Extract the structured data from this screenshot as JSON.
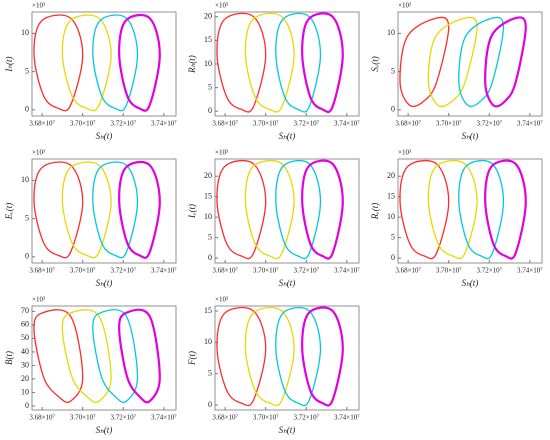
{
  "chart_data": [
    {
      "type": "line",
      "y_label": "Iₕ(t)",
      "x_label": "Sₕ(t)",
      "y_multiplier": "×10³",
      "xlim": [
        36750000,
        37460000
      ],
      "ylim": [
        -0.8,
        12.8
      ],
      "xticks": [
        {
          "value": 36800000,
          "label": "3.68×10⁷"
        },
        {
          "value": 37000000,
          "label": "3.70×10⁷"
        },
        {
          "value": 37200000,
          "label": "3.72×10⁷"
        },
        {
          "value": 37400000,
          "label": "3.74×10⁷"
        }
      ],
      "yticks": [
        0,
        5,
        10
      ],
      "series": [
        {
          "color": "#ff2a2a",
          "x": [
            36808000,
            36760000,
            36796000,
            36940000,
            37000000,
            36940000,
            36880000
          ],
          "values": [
            1.8,
            7.2,
            11.6,
            12,
            7.2,
            0.6,
            0.2
          ]
        },
        {
          "color": "#e8d800",
          "x": [
            36948000,
            36900000,
            36936000,
            37080000,
            37140000,
            37080000,
            37020000
          ],
          "values": [
            1.8,
            7.2,
            11.6,
            12,
            7.2,
            0.6,
            0.2
          ]
        },
        {
          "color": "#00c8e0",
          "x": [
            37094000,
            37050000,
            37083000,
            37215000,
            37270000,
            37215000,
            37160000
          ],
          "values": [
            1.8,
            7.2,
            11.6,
            12,
            7.2,
            0.6,
            0.2
          ]
        },
        {
          "color": "#e000e0",
          "x": [
            37220000,
            37180000,
            37210000,
            37330000,
            37380000,
            37330000,
            37280000
          ],
          "values": [
            1.8,
            7.2,
            11.6,
            12,
            7.2,
            0.6,
            0.2
          ]
        }
      ]
    },
    {
      "type": "line",
      "y_label": "Rₕ(t)",
      "x_label": "Sₕ(t)",
      "y_multiplier": "×10³",
      "xlim": [
        36750000,
        37460000
      ],
      "ylim": [
        -1,
        21
      ],
      "xticks": [
        {
          "value": 36800000,
          "label": "3.68×10⁷"
        },
        {
          "value": 37000000,
          "label": "3.70×10⁷"
        },
        {
          "value": 37200000,
          "label": "3.72×10⁷"
        },
        {
          "value": 37400000,
          "label": "3.74×10⁷"
        }
      ],
      "yticks": [
        0,
        5,
        10,
        15,
        20
      ],
      "series": [
        {
          "color": "#ff2a2a",
          "x": [
            36808000,
            36760000,
            36796000,
            36940000,
            37000000,
            36940000,
            36880000
          ],
          "values": [
            3,
            12,
            19.4,
            20,
            12,
            1,
            0.4
          ]
        },
        {
          "color": "#e8d800",
          "x": [
            36948000,
            36900000,
            36936000,
            37080000,
            37140000,
            37080000,
            37020000
          ],
          "values": [
            3,
            12,
            19.4,
            20,
            12,
            1,
            0.4
          ]
        },
        {
          "color": "#00c8e0",
          "x": [
            37094000,
            37050000,
            37083000,
            37215000,
            37270000,
            37215000,
            37160000
          ],
          "values": [
            3,
            12,
            19.4,
            20,
            12,
            1,
            0.4
          ]
        },
        {
          "color": "#e000e0",
          "x": [
            37220000,
            37180000,
            37210000,
            37330000,
            37380000,
            37330000,
            37280000
          ],
          "values": [
            3,
            12,
            19.4,
            20,
            12,
            1,
            0.4
          ]
        }
      ]
    },
    {
      "type": "line",
      "y_label": "Sᵥ(t)",
      "x_label": "Sₕ(t)",
      "y_multiplier": "×10³",
      "xlim": [
        36750000,
        37460000
      ],
      "ylim": [
        -0.8,
        12.8
      ],
      "xticks": [
        {
          "value": 36800000,
          "label": "3.68×10⁷"
        },
        {
          "value": 37000000,
          "label": "3.70×10⁷"
        },
        {
          "value": 37200000,
          "label": "3.72×10⁷"
        },
        {
          "value": 37400000,
          "label": "3.74×10⁷"
        }
      ],
      "yticks": [
        0,
        5,
        10
      ],
      "series": [
        {
          "color": "#ff2a2a",
          "x": [
            36808000,
            36760000,
            36796000,
            36940000,
            37000000,
            36940000,
            36880000
          ],
          "values": [
            0.6,
            3.6,
            9.6,
            12,
            10.8,
            3.6,
            1.2
          ]
        },
        {
          "color": "#e8d800",
          "x": [
            36948000,
            36900000,
            36936000,
            37080000,
            37140000,
            37080000,
            37020000
          ],
          "values": [
            0.6,
            3.6,
            9.6,
            12,
            10.8,
            3.6,
            1.2
          ]
        },
        {
          "color": "#00c8e0",
          "x": [
            37094000,
            37050000,
            37083000,
            37215000,
            37270000,
            37215000,
            37160000
          ],
          "values": [
            0.6,
            3.6,
            9.6,
            12,
            10.8,
            3.6,
            1.2
          ]
        },
        {
          "color": "#e000e0",
          "x": [
            37220000,
            37180000,
            37210000,
            37330000,
            37380000,
            37330000,
            37280000
          ],
          "values": [
            0.6,
            3.6,
            9.6,
            12,
            10.8,
            3.6,
            1.2
          ]
        }
      ]
    },
    {
      "type": "line",
      "y_label": "Eᵥ(t)",
      "x_label": "Sₕ(t)",
      "y_multiplier": "×10³",
      "xlim": [
        36750000,
        37460000
      ],
      "ylim": [
        -0.8,
        12.8
      ],
      "xticks": [
        {
          "value": 36800000,
          "label": "3.68×10⁷"
        },
        {
          "value": 37000000,
          "label": "3.70×10⁷"
        },
        {
          "value": 37200000,
          "label": "3.72×10⁷"
        },
        {
          "value": 37400000,
          "label": "3.74×10⁷"
        }
      ],
      "yticks": [
        0,
        5,
        10
      ],
      "series": [
        {
          "color": "#ff2a2a",
          "x": [
            36808000,
            36760000,
            36796000,
            36940000,
            37000000,
            36940000,
            36880000
          ],
          "values": [
            1.8,
            7.2,
            11.6,
            12,
            7.2,
            0.6,
            0.2
          ]
        },
        {
          "color": "#e8d800",
          "x": [
            36948000,
            36900000,
            36936000,
            37080000,
            37140000,
            37080000,
            37020000
          ],
          "values": [
            1.8,
            7.2,
            11.6,
            12,
            7.2,
            0.6,
            0.2
          ]
        },
        {
          "color": "#00c8e0",
          "x": [
            37094000,
            37050000,
            37083000,
            37215000,
            37270000,
            37215000,
            37160000
          ],
          "values": [
            1.8,
            7.2,
            11.6,
            12,
            7.2,
            0.6,
            0.2
          ]
        },
        {
          "color": "#e000e0",
          "x": [
            37220000,
            37180000,
            37210000,
            37330000,
            37380000,
            37330000,
            37280000
          ],
          "values": [
            1.8,
            7.2,
            11.6,
            12,
            7.2,
            0.6,
            0.2
          ]
        }
      ]
    },
    {
      "type": "line",
      "y_label": "Iᵥ(t)",
      "x_label": "Sₕ(t)",
      "y_multiplier": "×10³",
      "xlim": [
        36750000,
        37460000
      ],
      "ylim": [
        -1.2,
        24.2
      ],
      "xticks": [
        {
          "value": 36800000,
          "label": "3.68×10⁷"
        },
        {
          "value": 37000000,
          "label": "3.70×10⁷"
        },
        {
          "value": 37200000,
          "label": "3.72×10⁷"
        },
        {
          "value": 37400000,
          "label": "3.74×10⁷"
        }
      ],
      "yticks": [
        0,
        5,
        10,
        15,
        20
      ],
      "series": [
        {
          "color": "#ff2a2a",
          "x": [
            36808000,
            36760000,
            36796000,
            36940000,
            37000000,
            36940000,
            36880000
          ],
          "values": [
            3.5,
            13.8,
            22.3,
            23,
            13.8,
            1.2,
            0.5
          ]
        },
        {
          "color": "#e8d800",
          "x": [
            36948000,
            36900000,
            36936000,
            37080000,
            37140000,
            37080000,
            37020000
          ],
          "values": [
            3.5,
            13.8,
            22.3,
            23,
            13.8,
            1.2,
            0.5
          ]
        },
        {
          "color": "#00c8e0",
          "x": [
            37094000,
            37050000,
            37083000,
            37215000,
            37270000,
            37215000,
            37160000
          ],
          "values": [
            3.5,
            13.8,
            22.3,
            23,
            13.8,
            1.2,
            0.5
          ]
        },
        {
          "color": "#e000e0",
          "x": [
            37220000,
            37180000,
            37210000,
            37330000,
            37380000,
            37330000,
            37280000
          ],
          "values": [
            3.5,
            13.8,
            22.3,
            23,
            13.8,
            1.2,
            0.5
          ]
        }
      ]
    },
    {
      "type": "line",
      "y_label": "Rᵥ(t)",
      "x_label": "Sₕ(t)",
      "y_multiplier": "×10³",
      "xlim": [
        36750000,
        37460000
      ],
      "ylim": [
        -1.2,
        24.2
      ],
      "xticks": [
        {
          "value": 36800000,
          "label": "3.68×10⁷"
        },
        {
          "value": 37000000,
          "label": "3.70×10⁷"
        },
        {
          "value": 37200000,
          "label": "3.72×10⁷"
        },
        {
          "value": 37400000,
          "label": "3.74×10⁷"
        }
      ],
      "yticks": [
        0,
        5,
        10,
        15,
        20
      ],
      "series": [
        {
          "color": "#ff2a2a",
          "x": [
            36808000,
            36760000,
            36796000,
            36940000,
            37000000,
            36940000,
            36880000
          ],
          "values": [
            3.5,
            13.8,
            22.3,
            23,
            13.8,
            1.2,
            0.5
          ]
        },
        {
          "color": "#e8d800",
          "x": [
            36948000,
            36900000,
            36936000,
            37080000,
            37140000,
            37080000,
            37020000
          ],
          "values": [
            3.5,
            13.8,
            22.3,
            23,
            13.8,
            1.2,
            0.5
          ]
        },
        {
          "color": "#00c8e0",
          "x": [
            37094000,
            37050000,
            37083000,
            37215000,
            37270000,
            37215000,
            37160000
          ],
          "values": [
            3.5,
            13.8,
            22.3,
            23,
            13.8,
            1.2,
            0.5
          ]
        },
        {
          "color": "#e000e0",
          "x": [
            37220000,
            37180000,
            37210000,
            37330000,
            37380000,
            37330000,
            37280000
          ],
          "values": [
            3.5,
            13.8,
            22.3,
            23,
            13.8,
            1.2,
            0.5
          ]
        }
      ]
    },
    {
      "type": "line",
      "y_label": "B(t)",
      "x_label": "Sₕ(t)",
      "y_multiplier": "×10³",
      "xlim": [
        36750000,
        37460000
      ],
      "ylim": [
        -3,
        74
      ],
      "xticks": [
        {
          "value": 36800000,
          "label": "3.68×10⁷"
        },
        {
          "value": 37000000,
          "label": "3.70×10⁷"
        },
        {
          "value": 37200000,
          "label": "3.72×10⁷"
        },
        {
          "value": 37400000,
          "label": "3.74×10⁷"
        }
      ],
      "yticks": [
        0,
        10,
        20,
        30,
        40,
        50,
        60,
        70
      ],
      "series": [
        {
          "color": "#ff2a2a",
          "x": [
            36808000,
            36760000,
            36796000,
            36940000,
            37000000,
            36940000,
            36880000
          ],
          "values": [
            21,
            56,
            68.6,
            66.5,
            21,
            3.5,
            7
          ]
        },
        {
          "color": "#e8d800",
          "x": [
            36948000,
            36900000,
            36936000,
            37080000,
            37140000,
            37080000,
            37020000
          ],
          "values": [
            21,
            56,
            68.6,
            66.5,
            21,
            3.5,
            7
          ]
        },
        {
          "color": "#00c8e0",
          "x": [
            37094000,
            37050000,
            37083000,
            37215000,
            37270000,
            37215000,
            37160000
          ],
          "values": [
            21,
            56,
            68.6,
            66.5,
            21,
            3.5,
            7
          ]
        },
        {
          "color": "#e000e0",
          "x": [
            37220000,
            37180000,
            37210000,
            37330000,
            37380000,
            37330000,
            37280000
          ],
          "values": [
            21,
            56,
            68.6,
            66.5,
            21,
            3.5,
            7
          ]
        }
      ]
    },
    {
      "type": "line",
      "y_label": "F(t)",
      "x_label": "Sₕ(t)",
      "y_multiplier": "×10³",
      "xlim": [
        36750000,
        37460000
      ],
      "ylim": [
        -0.8,
        15.8
      ],
      "xticks": [
        {
          "value": 36800000,
          "label": "3.68×10⁷"
        },
        {
          "value": 37000000,
          "label": "3.70×10⁷"
        },
        {
          "value": 37200000,
          "label": "3.72×10⁷"
        },
        {
          "value": 37400000,
          "label": "3.74×10⁷"
        }
      ],
      "yticks": [
        0,
        5,
        10,
        15
      ],
      "series": [
        {
          "color": "#ff2a2a",
          "x": [
            36808000,
            36760000,
            36796000,
            36940000,
            37000000,
            36940000,
            36880000
          ],
          "values": [
            2.3,
            9,
            14.6,
            15,
            9,
            0.8,
            0.3
          ]
        },
        {
          "color": "#e8d800",
          "x": [
            36948000,
            36900000,
            36936000,
            37080000,
            37140000,
            37080000,
            37020000
          ],
          "values": [
            2.3,
            9,
            14.6,
            15,
            9,
            0.8,
            0.3
          ]
        },
        {
          "color": "#00c8e0",
          "x": [
            37094000,
            37050000,
            37083000,
            37215000,
            37270000,
            37215000,
            37160000
          ],
          "values": [
            2.3,
            9,
            14.6,
            15,
            9,
            0.8,
            0.3
          ]
        },
        {
          "color": "#e000e0",
          "x": [
            37220000,
            37180000,
            37210000,
            37330000,
            37380000,
            37330000,
            37280000
          ],
          "values": [
            2.3,
            9,
            14.6,
            15,
            9,
            0.8,
            0.3
          ]
        }
      ]
    }
  ]
}
